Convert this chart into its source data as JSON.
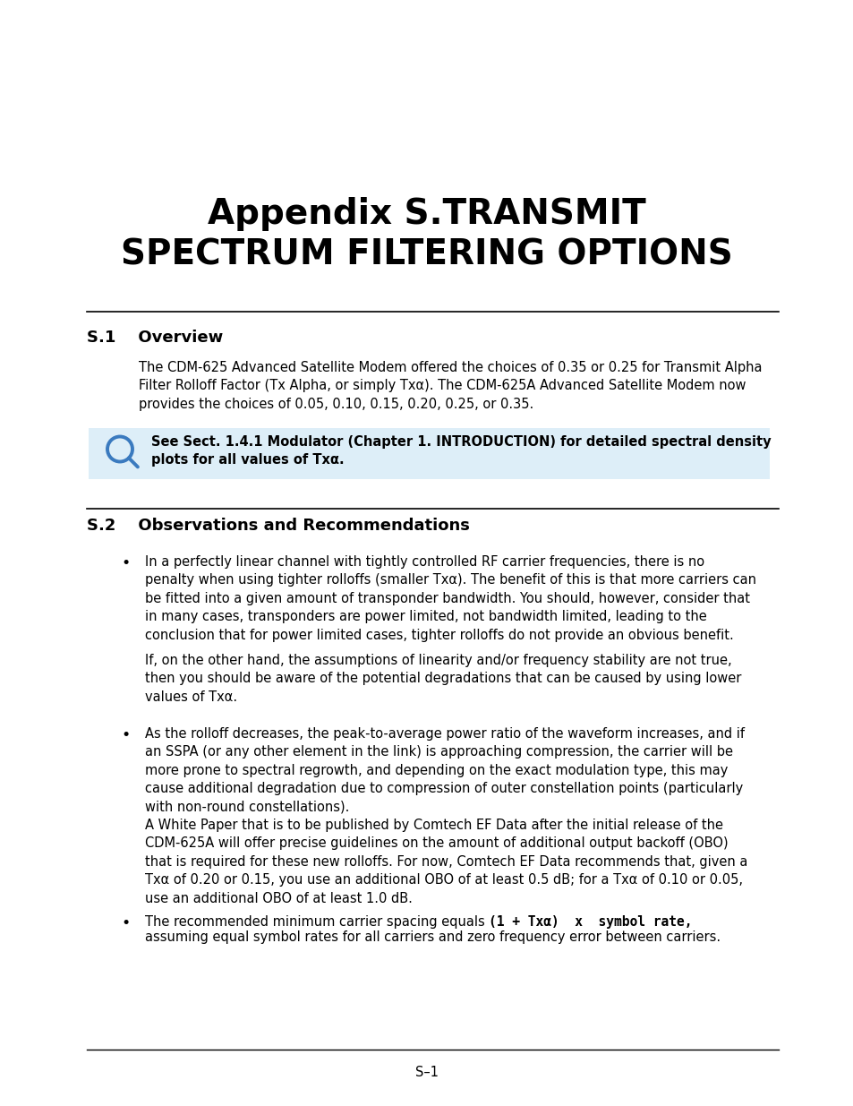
{
  "bg_color": "#ffffff",
  "title_line1": "Appendix S.TRANSMIT",
  "title_line2": "SPECTRUM FILTERING OPTIONS",
  "title_fontsize": 28,
  "s1_heading": "S.1    Overview",
  "s1_body": "The CDM-625 Advanced Satellite Modem offered the choices of 0.35 or 0.25 for Transmit Alpha\nFilter Rolloff Factor (Tx Alpha, or simply Txα). The CDM-625A Advanced Satellite Modem now\nprovides the choices of 0.05, 0.10, 0.15, 0.20, 0.25, or 0.35.",
  "note_text": "See Sect. 1.4.1 Modulator (Chapter 1. INTRODUCTION) for detailed spectral density\nplots for all values of Txα.",
  "s2_heading": "S.2    Observations and Recommendations",
  "bullet1_text": "In a perfectly linear channel with tightly controlled RF carrier frequencies, there is no\npenalty when using tighter rolloffs (smaller Txα). The benefit of this is that more carriers can\nbe fitted into a given amount of transponder bandwidth. You should, however, consider that\nin many cases, transponders are power limited, not bandwidth limited, leading to the\nconclusion that for power limited cases, tighter rolloffs do not provide an obvious benefit.",
  "para1_text": "If, on the other hand, the assumptions of linearity and/or frequency stability are not true,\nthen you should be aware of the potential degradations that can be caused by using lower\nvalues of Txα.",
  "bullet2_text": "As the rolloff decreases, the peak-to-average power ratio of the waveform increases, and if\nan SSPA (or any other element in the link) is approaching compression, the carrier will be\nmore prone to spectral regrowth, and depending on the exact modulation type, this may\ncause additional degradation due to compression of outer constellation points (particularly\nwith non-round constellations).",
  "para2_text": "A White Paper that is to be published by Comtech EF Data after the initial release of the\nCDM-625A will offer precise guidelines on the amount of additional output backoff (OBO)\nthat is required for these new rolloffs. For now, Comtech EF Data recommends that, given a\nTxα of 0.20 or 0.15, you use an additional OBO of at least 0.5 dB; for a Txα of 0.10 or 0.05,\nuse an additional OBO of at least 1.0 dB.",
  "bullet3_pre": "The recommended minimum carrier spacing equals ",
  "bullet3_code": "(1 + Txα)  x  symbol rate",
  "bullet3_post": ",",
  "bullet3_line2": "assuming equal symbol rates for all carriers and zero frequency error between carriers.",
  "footer_text": "S–1",
  "line_color": "#000000",
  "text_color": "#000000",
  "body_fontsize": 10.5,
  "heading_fontsize": 13,
  "icon_color": "#3a7abf",
  "note_bg": "#ddeef8"
}
